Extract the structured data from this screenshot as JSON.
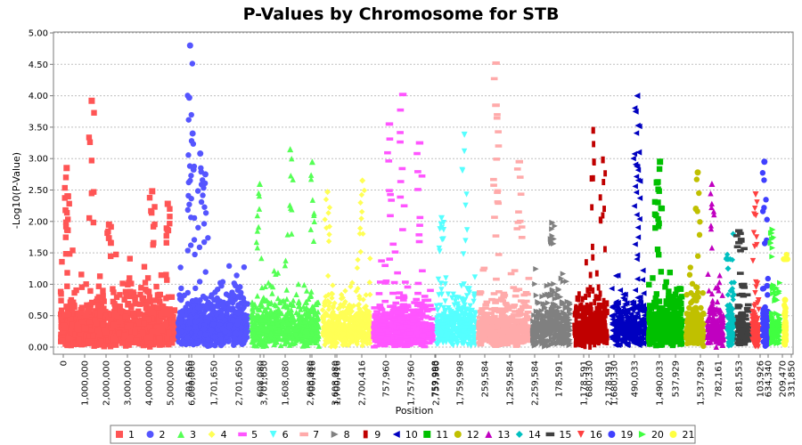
{
  "chart_data": {
    "type": "scatter",
    "title": "P-Values by Chromosome for STB",
    "xlabel": "Position",
    "ylabel": "-Log10(P-Value)",
    "ylim": [
      0,
      5
    ],
    "yticks": [
      "0.00",
      "0.50",
      "1.00",
      "1.50",
      "2.00",
      "2.50",
      "3.00",
      "3.50",
      "4.00",
      "4.50",
      "5.00"
    ],
    "grid": true,
    "legend_position": "bottom",
    "xticks": [
      "0",
      "1,000,000",
      "2,000,000",
      "3,000,000",
      "4,000,000",
      "5,000,000",
      "6,000,000",
      "701,650",
      "1,701,650",
      "2,701,650",
      "3,701,650",
      "608,080",
      "1,608,080",
      "2,608,080",
      "3,608,080",
      "700,416",
      "1,700,416",
      "2,700,416",
      "757,960",
      "1,757,960",
      "2,757,960",
      "759,998",
      "1,759,998",
      "259,584",
      "1,259,584",
      "2,259,584",
      "178,591",
      "1,178,591",
      "2,178,591",
      "680,330",
      "1,680,330",
      "490,033",
      "1,490,033",
      "537,929",
      "1,537,929",
      "782,161",
      "281,553",
      "103,926",
      "634,340",
      "331,850",
      "209,470"
    ],
    "series": [
      {
        "name": "1",
        "color": "#ff5555",
        "marker": "square",
        "x_range": [
          0,
          6600000
        ],
        "peaks": [
          [
            0.35,
            2.85
          ],
          [
            1.8,
            3.92
          ],
          [
            5.3,
            2.48
          ],
          [
            6.2,
            2.28
          ],
          [
            0.4,
            2.4
          ],
          [
            2.8,
            1.95
          ]
        ]
      },
      {
        "name": "2",
        "color": "#5555ff",
        "marker": "circle",
        "x_range": [
          6600000,
          10700000
        ],
        "peaks": [
          [
            0.7,
            4.8
          ],
          [
            0.65,
            3.97
          ],
          [
            0.85,
            3.4
          ],
          [
            1.3,
            3.08
          ],
          [
            1.6,
            2.75
          ]
        ]
      },
      {
        "name": "3",
        "color": "#55ff55",
        "marker": "triangle-up",
        "x_range": [
          10700000,
          14700000
        ],
        "peaks": [
          [
            0.5,
            2.6
          ],
          [
            2.3,
            3.15
          ],
          [
            3.6,
            2.95
          ]
        ]
      },
      {
        "name": "4",
        "color": "#ffff55",
        "marker": "diamond",
        "x_range": [
          14700000,
          17600000
        ],
        "peaks": [
          [
            0.3,
            2.47
          ],
          [
            2.4,
            2.65
          ]
        ]
      },
      {
        "name": "5",
        "color": "#ff55ff",
        "marker": "dash",
        "x_range": [
          17600000,
          21100000
        ],
        "peaks": [
          [
            0.9,
            3.55
          ],
          [
            1.7,
            4.02
          ],
          [
            2.7,
            3.25
          ]
        ]
      },
      {
        "name": "6",
        "color": "#55ffff",
        "marker": "triangle-down",
        "x_range": [
          21100000,
          23500000
        ],
        "peaks": [
          [
            1.7,
            3.38
          ],
          [
            0.3,
            2.05
          ]
        ]
      },
      {
        "name": "7",
        "color": "#ffaaaa",
        "marker": "dash",
        "x_range": [
          23500000,
          26500000
        ],
        "peaks": [
          [
            1.0,
            4.52
          ],
          [
            1.0,
            3.85
          ],
          [
            2.4,
            2.95
          ]
        ]
      },
      {
        "name": "8",
        "color": "#808080",
        "marker": "triangle-right",
        "x_range": [
          26500000,
          28800000
        ],
        "peaks": [
          [
            1.2,
            1.98
          ]
        ]
      },
      {
        "name": "9",
        "color": "#c00000",
        "marker": "rect-tall",
        "x_range": [
          28800000,
          30900000
        ],
        "peaks": [
          [
            1.2,
            3.45
          ],
          [
            1.8,
            2.98
          ]
        ]
      },
      {
        "name": "10",
        "color": "#0000c0",
        "marker": "triangle-left",
        "x_range": [
          30900000,
          33000000
        ],
        "peaks": [
          [
            1.6,
            4.0
          ],
          [
            1.5,
            3.75
          ],
          [
            1.7,
            3.1
          ]
        ]
      },
      {
        "name": "11",
        "color": "#00c000",
        "marker": "square",
        "x_range": [
          33000000,
          35100000
        ],
        "peaks": [
          [
            0.7,
            2.95
          ],
          [
            0.5,
            2.62
          ]
        ]
      },
      {
        "name": "12",
        "color": "#c0c000",
        "marker": "circle",
        "x_range": [
          35100000,
          36300000
        ],
        "peaks": [
          [
            0.78,
            2.78
          ]
        ]
      },
      {
        "name": "13",
        "color": "#c000c0",
        "marker": "triangle-up",
        "x_range": [
          36300000,
          37400000
        ],
        "peaks": [
          [
            0.3,
            2.6
          ]
        ]
      },
      {
        "name": "14",
        "color": "#00c0c0",
        "marker": "diamond",
        "x_range": [
          37400000,
          38000000
        ],
        "peaks": [
          [
            0.1,
            1.25
          ]
        ]
      },
      {
        "name": "15",
        "color": "#404040",
        "marker": "dash",
        "x_range": [
          38000000,
          38800000
        ],
        "peaks": [
          [
            0.1,
            1.85
          ]
        ]
      },
      {
        "name": "16",
        "color": "#ff4040",
        "marker": "triangle-down",
        "x_range": [
          38800000,
          39400000
        ],
        "peaks": [
          [
            0.5,
            2.43
          ]
        ]
      },
      {
        "name": "19",
        "color": "#4040ff",
        "marker": "circle",
        "x_range": [
          39400000,
          39900000
        ],
        "peaks": [
          [
            0.3,
            2.95
          ]
        ]
      },
      {
        "name": "20",
        "color": "#40ff40",
        "marker": "triangle-right",
        "x_range": [
          39900000,
          40600000
        ],
        "peaks": [
          [
            0.1,
            1.87
          ]
        ]
      },
      {
        "name": "21",
        "color": "#ffff40",
        "marker": "circle",
        "x_range": [
          40600000,
          40900000
        ],
        "peaks": [
          [
            0.1,
            0.75
          ]
        ]
      }
    ]
  }
}
